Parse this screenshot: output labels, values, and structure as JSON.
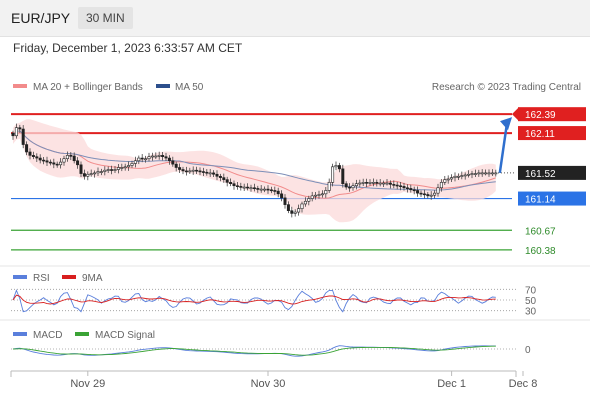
{
  "header": {
    "symbol": "EUR/JPY",
    "timeframe": "30 MIN",
    "datetime": "Friday, December 1, 2023 6:33:57 AM CET"
  },
  "chart_data": {
    "type": "candlestick",
    "symbol": "EUR/JPY",
    "timeframe": "30 MIN",
    "credit": "Research © 2023 Trading Central",
    "legend": [
      {
        "name": "MA 20 + Bollinger Bands",
        "color": "#f28b8b"
      },
      {
        "name": "MA 50",
        "color": "#2c4f8c"
      }
    ],
    "ylim": [
      160.2,
      162.6
    ],
    "x_ticks": [
      "Nov 29",
      "Nov 30",
      "Dec 1",
      "Dec 8"
    ],
    "x_tick_index": [
      22,
      75,
      129,
      150
    ],
    "candle_count": 143,
    "closes": [
      162.07,
      162.19,
      162.17,
      161.94,
      161.83,
      161.78,
      161.76,
      161.74,
      161.71,
      161.7,
      161.68,
      161.67,
      161.65,
      161.64,
      161.68,
      161.73,
      161.78,
      161.77,
      161.7,
      161.64,
      161.51,
      161.47,
      161.5,
      161.51,
      161.52,
      161.54,
      161.54,
      161.56,
      161.57,
      161.56,
      161.57,
      161.6,
      161.6,
      161.61,
      161.63,
      161.66,
      161.7,
      161.74,
      161.73,
      161.73,
      161.76,
      161.77,
      161.77,
      161.78,
      161.76,
      161.74,
      161.7,
      161.65,
      161.6,
      161.57,
      161.55,
      161.54,
      161.55,
      161.56,
      161.55,
      161.54,
      161.53,
      161.52,
      161.52,
      161.5,
      161.47,
      161.45,
      161.42,
      161.38,
      161.36,
      161.33,
      161.32,
      161.31,
      161.31,
      161.3,
      161.3,
      161.29,
      161.28,
      161.28,
      161.28,
      161.27,
      161.26,
      161.25,
      161.21,
      161.15,
      161.05,
      160.96,
      160.92,
      160.94,
      160.99,
      161.06,
      161.1,
      161.14,
      161.18,
      161.19,
      161.2,
      161.21,
      161.26,
      161.38,
      161.61,
      161.63,
      161.58,
      161.36,
      161.31,
      161.3,
      161.33,
      161.36,
      161.37,
      161.38,
      161.37,
      161.38,
      161.38,
      161.37,
      161.37,
      161.37,
      161.37,
      161.35,
      161.34,
      161.33,
      161.32,
      161.3,
      161.29,
      161.27,
      161.26,
      161.22,
      161.21,
      161.2,
      161.18,
      161.19,
      161.22,
      161.3,
      161.38,
      161.42,
      161.43,
      161.45,
      161.47,
      161.47,
      161.48,
      161.49,
      161.5,
      161.51,
      161.51,
      161.52,
      161.52,
      161.52,
      161.52,
      161.52,
      161.52
    ],
    "levels": [
      {
        "value": 162.39,
        "label": "162.39",
        "kind": "resistance",
        "color": "#e02020",
        "badge": true
      },
      {
        "value": 162.11,
        "label": "162.11",
        "kind": "resistance",
        "color": "#e02020",
        "badge": true
      },
      {
        "value": 161.52,
        "label": "161.52",
        "kind": "last",
        "color": "#222222",
        "badge": true
      },
      {
        "value": 161.14,
        "label": "161.14",
        "kind": "pivot",
        "color": "#2b73e6",
        "badge": true
      },
      {
        "value": 160.67,
        "label": "160.67",
        "kind": "support",
        "color": "#3aa335",
        "badge": false
      },
      {
        "value": 160.38,
        "label": "160.38",
        "kind": "support",
        "color": "#3aa335",
        "badge": false
      }
    ],
    "target_arrow": {
      "from": 161.52,
      "to": 162.39
    },
    "rsi": {
      "legend": [
        {
          "name": "RSI",
          "color": "#5a7fdc"
        },
        {
          "name": "9MA",
          "color": "#d81f1f"
        }
      ],
      "levels": [
        "70",
        "50",
        "30"
      ],
      "ylim": [
        20,
        80
      ]
    },
    "macd": {
      "legend": [
        {
          "name": "MACD",
          "color": "#5a7fdc"
        },
        {
          "name": "MACD Signal",
          "color": "#3aa335"
        }
      ],
      "zero_label": "0"
    }
  }
}
